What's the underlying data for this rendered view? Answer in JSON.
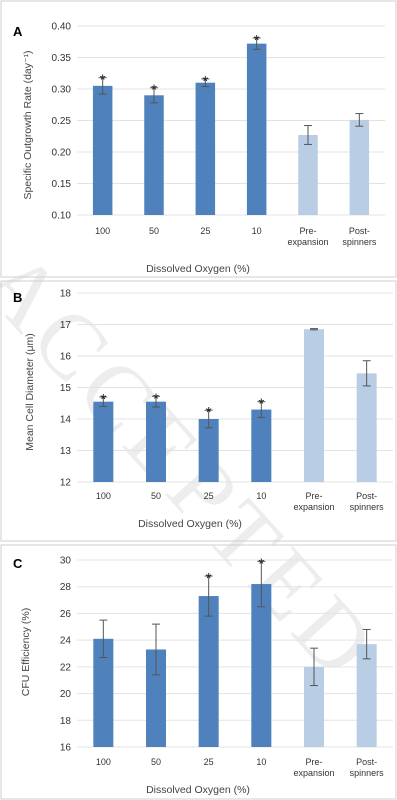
{
  "colors": {
    "do_bar": "#4f81bd",
    "control_bar": "#b9cde5",
    "error_bar": "#555555"
  },
  "watermark": "ACCEPTED",
  "chart_data": [
    {
      "panel": "A",
      "type": "bar",
      "ylabel": "Specific Outgrowth Rate (day⁻¹)",
      "xlabel": "Dissolved Oxygen (%)",
      "ylim": [
        0.1,
        0.4
      ],
      "yticks": [
        "0.10",
        "0.15",
        "0.20",
        "0.25",
        "0.30",
        "0.35",
        "0.40"
      ],
      "categories": [
        [
          "100"
        ],
        [
          "50"
        ],
        [
          "25"
        ],
        [
          "10"
        ],
        [
          "Pre-",
          "expansion"
        ],
        [
          "Post-",
          "spinners"
        ]
      ],
      "values": [
        0.305,
        0.29,
        0.31,
        0.372,
        0.227,
        0.251
      ],
      "errors": [
        0.013,
        0.012,
        0.006,
        0.009,
        0.015,
        0.01
      ],
      "significant": [
        true,
        true,
        true,
        true,
        false,
        false
      ],
      "star": "*"
    },
    {
      "panel": "B",
      "type": "bar",
      "ylabel": "Mean Cell Diameter (μm)",
      "xlabel": "Dissolved Oxygen (%)",
      "ylim": [
        12,
        18
      ],
      "yticks": [
        "12",
        "13",
        "14",
        "15",
        "16",
        "17",
        "18"
      ],
      "categories": [
        [
          "100"
        ],
        [
          "50"
        ],
        [
          "25"
        ],
        [
          "10"
        ],
        [
          "Pre-",
          "expansion"
        ],
        [
          "Post-",
          "spinners"
        ]
      ],
      "values": [
        14.55,
        14.55,
        14.0,
        14.3,
        16.85,
        15.45
      ],
      "errors": [
        0.15,
        0.17,
        0.28,
        0.25,
        0.02,
        0.4
      ],
      "significant": [
        true,
        true,
        true,
        true,
        false,
        false
      ],
      "star": "*"
    },
    {
      "panel": "C",
      "type": "bar",
      "ylabel": "CFU Efficiency (%)",
      "xlabel": "Dissolved Oxygen (%)",
      "ylim": [
        16,
        30
      ],
      "yticks": [
        "16",
        "18",
        "20",
        "22",
        "24",
        "26",
        "28",
        "30"
      ],
      "categories": [
        [
          "100"
        ],
        [
          "50"
        ],
        [
          "25"
        ],
        [
          "10"
        ],
        [
          "Pre-",
          "expansion"
        ],
        [
          "Post-",
          "spinners"
        ]
      ],
      "values": [
        24.1,
        23.3,
        27.3,
        28.2,
        22.0,
        23.7
      ],
      "errors": [
        1.4,
        1.9,
        1.5,
        1.7,
        1.4,
        1.1
      ],
      "significant": [
        false,
        false,
        true,
        true,
        false,
        false
      ],
      "star": "*"
    }
  ]
}
